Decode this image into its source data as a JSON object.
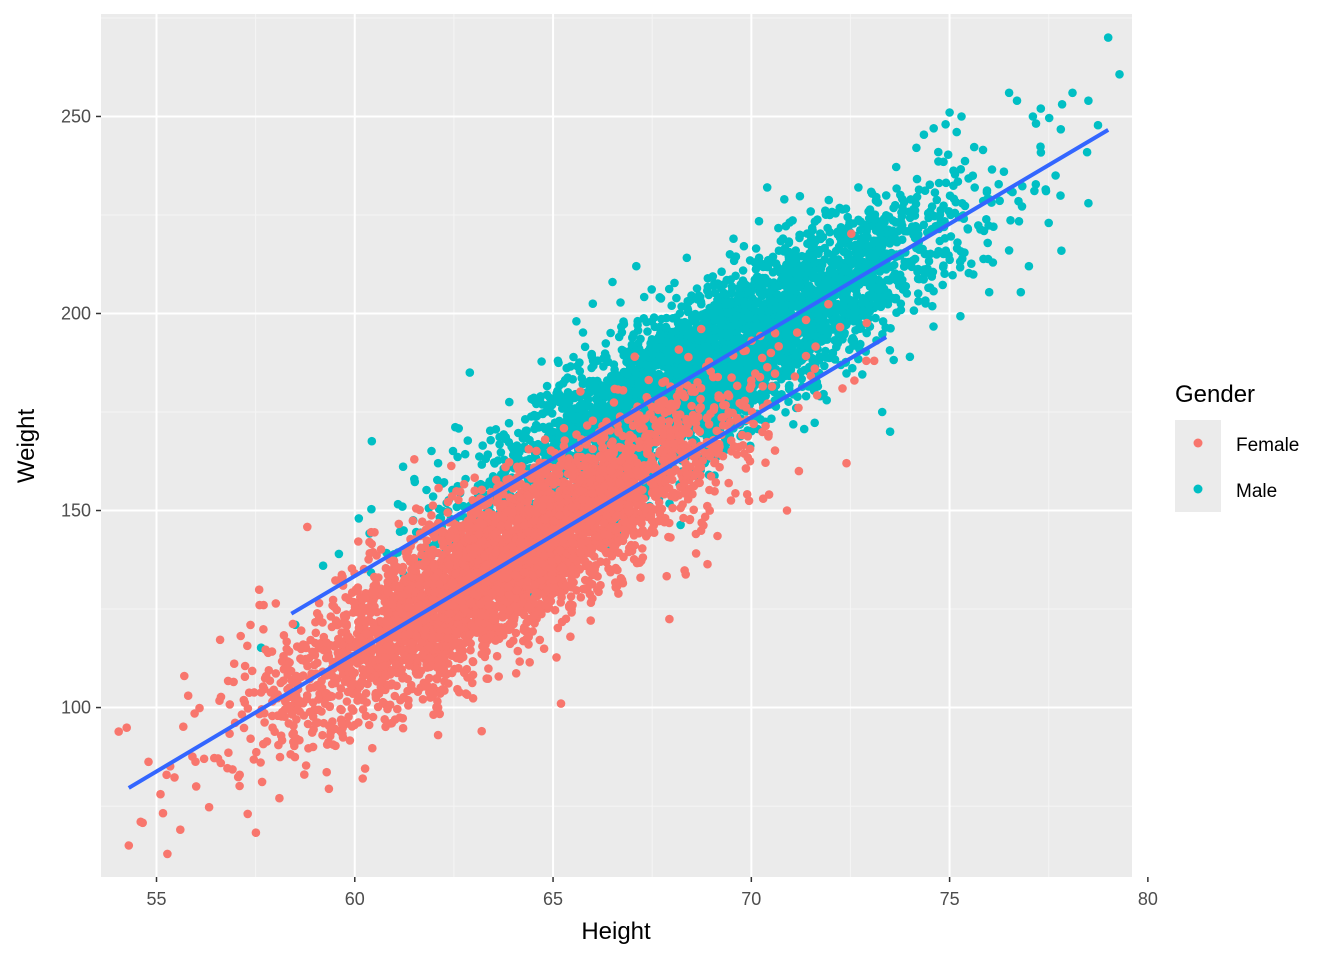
{
  "chart_data": {
    "type": "scatter",
    "title": "",
    "xlabel": "Height",
    "ylabel": "Weight",
    "xlim": [
      53.6,
      79.6
    ],
    "ylim": [
      57,
      276
    ],
    "x_ticks": [
      55,
      60,
      65,
      70,
      75,
      80
    ],
    "y_ticks": [
      100,
      150,
      200,
      250
    ],
    "x_tick_labels": [
      "55",
      "60",
      "65",
      "70",
      "75",
      "80"
    ],
    "y_tick_labels": [
      "100",
      "150",
      "200",
      "250"
    ],
    "grid": true,
    "legend": {
      "title": "Gender",
      "placement": "right",
      "entries": [
        "Female",
        "Male"
      ]
    },
    "series": [
      {
        "name": "Female",
        "color": "#F8766D",
        "trend": {
          "x_mean": 63.7,
          "y_mean": 135.9,
          "sd_x": 2.7,
          "sd_resid": 10.2,
          "slope": 5.99,
          "x_min": 54.3,
          "x_max": 73.4
        },
        "points": [
          [
            54.3,
            65
          ],
          [
            54.6,
            71
          ],
          [
            55.1,
            78
          ],
          [
            55.6,
            69
          ],
          [
            55.7,
            108
          ],
          [
            55.8,
            103
          ],
          [
            56.0,
            80
          ],
          [
            56.2,
            87
          ],
          [
            57.3,
            73
          ],
          [
            58.1,
            77
          ],
          [
            60.2,
            82
          ],
          [
            62.1,
            100
          ],
          [
            62.1,
            93
          ],
          [
            63.2,
            94
          ],
          [
            65.2,
            101
          ],
          [
            61.5,
            163
          ],
          [
            64.8,
            168
          ],
          [
            67.4,
            178
          ],
          [
            68.7,
            170
          ],
          [
            70.0,
            183
          ],
          [
            70.6,
            195
          ],
          [
            71.1,
            184
          ],
          [
            71.6,
            186
          ],
          [
            72.3,
            181
          ],
          [
            72.6,
            183
          ],
          [
            72.9,
            188
          ],
          [
            73.1,
            188
          ],
          [
            69.2,
            161
          ],
          [
            70.3,
            153
          ],
          [
            72.4,
            162
          ],
          [
            71.2,
            160
          ],
          [
            70.9,
            150
          ],
          [
            57.6,
            126
          ],
          [
            57.7,
            126
          ],
          [
            58.7,
            116
          ]
        ]
      },
      {
        "name": "Male",
        "color": "#00BFC4",
        "trend": {
          "x_mean": 69.0,
          "y_mean": 187.0,
          "sd_x": 2.9,
          "sd_resid": 10.0,
          "slope": 5.96,
          "x_min": 58.4,
          "x_max": 79.0
        },
        "points": [
          [
            79.0,
            270
          ],
          [
            78.1,
            256
          ],
          [
            78.5,
            254
          ],
          [
            76.5,
            256
          ],
          [
            76.7,
            254
          ],
          [
            77.1,
            250
          ],
          [
            77.3,
            252
          ],
          [
            75.3,
            250
          ],
          [
            75.0,
            251
          ],
          [
            74.9,
            248
          ],
          [
            74.6,
            247
          ],
          [
            78.5,
            228
          ],
          [
            76.0,
            229
          ],
          [
            77.5,
            223
          ],
          [
            76.5,
            216
          ],
          [
            77.0,
            212
          ],
          [
            59.2,
            136
          ],
          [
            58.5,
            121
          ],
          [
            60.1,
            148
          ],
          [
            59.6,
            139
          ],
          [
            61.2,
            151
          ],
          [
            61.5,
            158
          ],
          [
            62.1,
            162
          ],
          [
            62.9,
            185
          ],
          [
            66.1,
            181
          ],
          [
            67.5,
            190
          ],
          [
            68.2,
            200
          ],
          [
            73.5,
            170
          ],
          [
            74.0,
            189
          ],
          [
            71.9,
            178
          ],
          [
            73.3,
            175
          ],
          [
            67.1,
            212
          ],
          [
            66.5,
            208
          ],
          [
            70.4,
            232
          ],
          [
            72.7,
            232
          ]
        ]
      }
    ]
  }
}
